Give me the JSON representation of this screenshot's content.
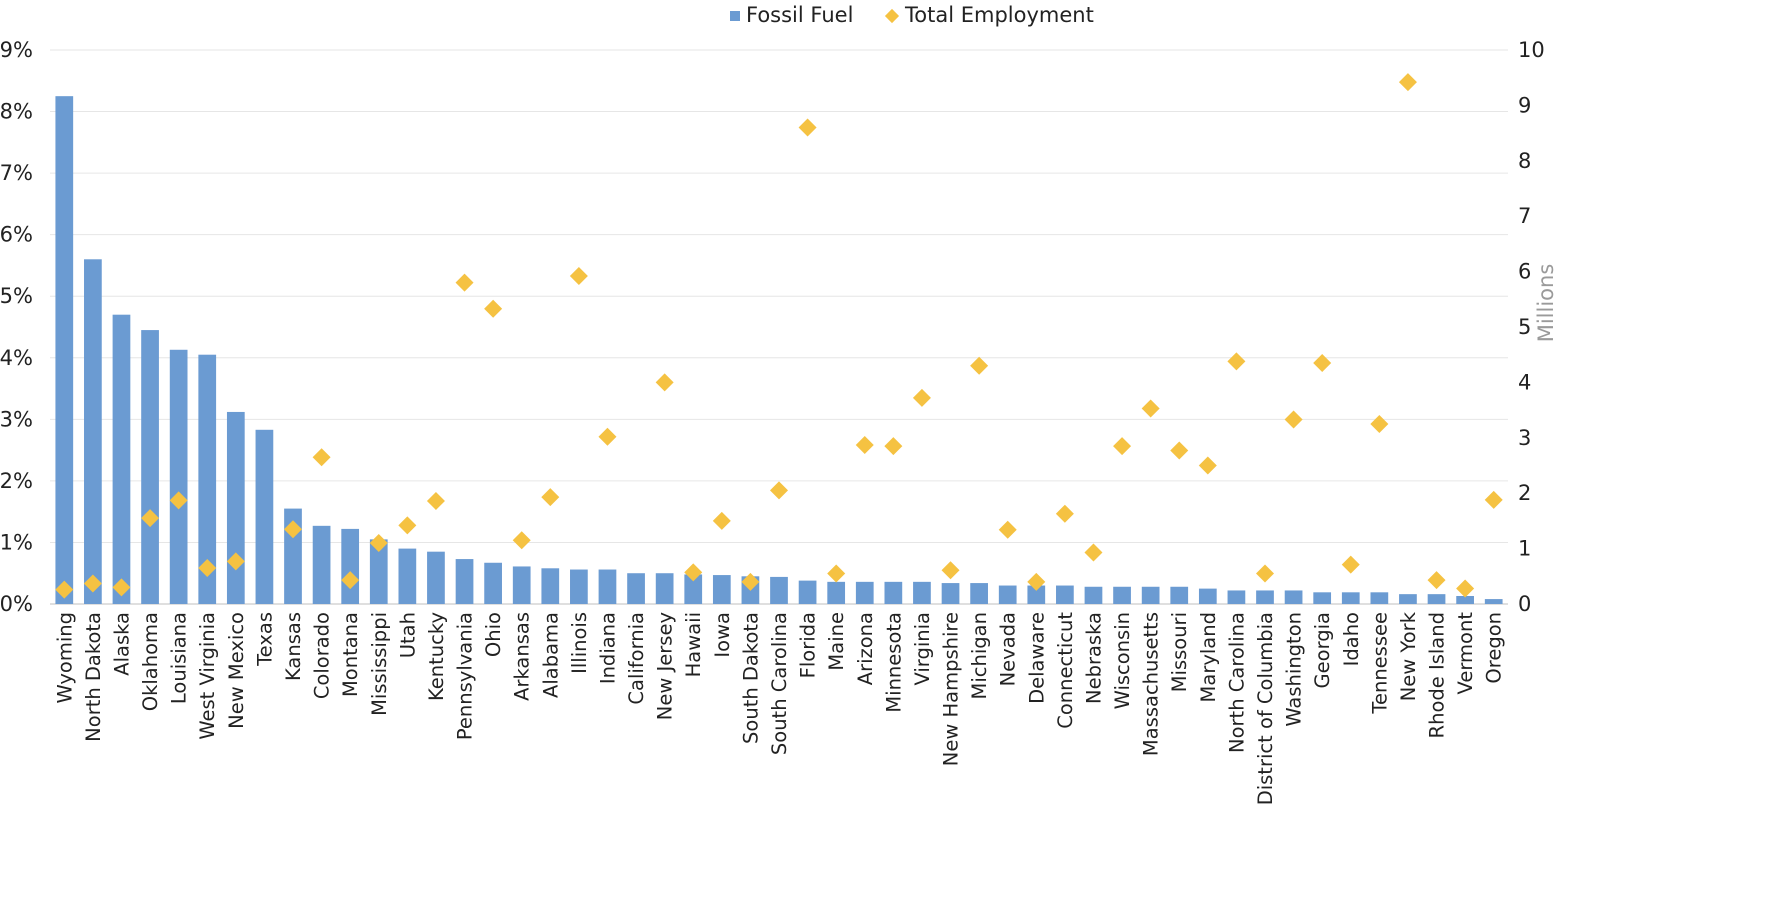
{
  "chart_data": {
    "type": "bar",
    "categories": [
      "Wyoming",
      "North Dakota",
      "Alaska",
      "Oklahoma",
      "Louisiana",
      "West Virginia",
      "New Mexico",
      "Texas",
      "Kansas",
      "Colorado",
      "Montana",
      "Mississippi",
      "Utah",
      "Kentucky",
      "Pennsylvania",
      "Ohio",
      "Arkansas",
      "Alabama",
      "Illinois",
      "Indiana",
      "California",
      "New Jersey",
      "Hawaii",
      "Iowa",
      "South Dakota",
      "South Carolina",
      "Florida",
      "Maine",
      "Arizona",
      "Minnesota",
      "Virginia",
      "New Hampshire",
      "Michigan",
      "Nevada",
      "Delaware",
      "Connecticut",
      "Nebraska",
      "Wisconsin",
      "Massachusetts",
      "Missouri",
      "Maryland",
      "North Carolina",
      "District of Columbia",
      "Washington",
      "Georgia",
      "Idaho",
      "Tennessee",
      "New York",
      "Rhode Island",
      "Vermont",
      "Oregon"
    ],
    "series": [
      {
        "name": "Fossil Fuel",
        "type": "bar",
        "axis": "left",
        "color": "#6B9BD2",
        "values": [
          8.25,
          5.6,
          4.7,
          4.45,
          4.13,
          4.05,
          3.12,
          2.83,
          1.55,
          1.27,
          1.22,
          1.05,
          0.9,
          0.85,
          0.73,
          0.67,
          0.61,
          0.58,
          0.56,
          0.56,
          0.5,
          0.5,
          0.48,
          0.47,
          0.45,
          0.44,
          0.38,
          0.36,
          0.36,
          0.36,
          0.36,
          0.34,
          0.34,
          0.3,
          0.3,
          0.3,
          0.28,
          0.28,
          0.28,
          0.28,
          0.25,
          0.22,
          0.22,
          0.22,
          0.19,
          0.19,
          0.19,
          0.16,
          0.16,
          0.13,
          0.08
        ]
      },
      {
        "name": "Total Employment",
        "type": "scatter",
        "axis": "right",
        "color": "#F5C242",
        "values": [
          0.26,
          0.37,
          0.3,
          1.55,
          1.87,
          0.65,
          0.77,
          null,
          1.35,
          2.65,
          0.43,
          1.1,
          1.42,
          1.86,
          5.8,
          5.33,
          1.15,
          1.93,
          5.92,
          3.02,
          null,
          4.0,
          0.57,
          1.5,
          0.4,
          2.05,
          8.6,
          0.55,
          2.87,
          2.85,
          3.72,
          0.61,
          4.3,
          1.34,
          0.4,
          1.63,
          0.93,
          2.85,
          3.53,
          2.77,
          2.5,
          4.38,
          0.55,
          3.33,
          4.35,
          0.71,
          3.25,
          9.42,
          0.43,
          0.28,
          1.88
        ]
      }
    ],
    "y_left": {
      "min": 0,
      "max": 9,
      "step": 1,
      "tick_labels": [
        "0%",
        "1%",
        "2%",
        "3%",
        "4%",
        "5%",
        "6%",
        "7%",
        "8%",
        "9%"
      ]
    },
    "y_right": {
      "min": 0,
      "max": 10,
      "step": 1,
      "title": "Millions",
      "tick_labels": [
        "0",
        "1",
        "2",
        "3",
        "4",
        "5",
        "6",
        "7",
        "8",
        "9",
        "10"
      ]
    },
    "grid": true,
    "legend": {
      "position": "top-center",
      "entries": [
        "Fossil Fuel",
        "Total Employment"
      ]
    },
    "title": "",
    "xlabel": ""
  }
}
